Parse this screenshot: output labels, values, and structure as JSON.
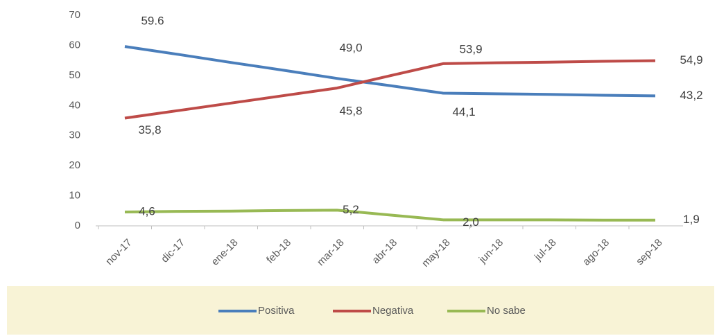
{
  "chart_data": {
    "type": "line",
    "categories": [
      "nov-17",
      "dic-17",
      "ene-18",
      "feb-18",
      "mar-18",
      "abr-18",
      "may-18",
      "jun-18",
      "jul-18",
      "ago-18",
      "sep-18"
    ],
    "series": [
      {
        "name": "Positiva",
        "color": "#4a7ebb",
        "values": [
          59.6,
          57.0,
          54.3,
          51.7,
          49.0,
          46.6,
          44.1,
          43.9,
          43.7,
          43.4,
          43.2
        ],
        "value_labels": [
          "59.6",
          null,
          null,
          null,
          "49,0",
          null,
          "44,1",
          null,
          null,
          null,
          "43,2"
        ]
      },
      {
        "name": "Negativa",
        "color": "#be4b48",
        "values": [
          35.8,
          38.3,
          40.8,
          43.3,
          45.8,
          49.9,
          53.9,
          54.2,
          54.4,
          54.7,
          54.9
        ],
        "value_labels": [
          "35,8",
          null,
          null,
          null,
          "45,8",
          null,
          "53,9",
          null,
          null,
          null,
          "54,9"
        ]
      },
      {
        "name": "No sabe",
        "color": "#98b954",
        "values": [
          4.6,
          4.8,
          4.9,
          5.1,
          5.2,
          3.6,
          2.0,
          2.0,
          2.0,
          1.9,
          1.9
        ],
        "value_labels": [
          "4,6",
          null,
          null,
          null,
          "5,2",
          null,
          "2,0",
          null,
          null,
          null,
          "1,9"
        ]
      }
    ],
    "ylim": [
      0,
      70
    ],
    "yticks": [
      0,
      10,
      20,
      30,
      40,
      50,
      60,
      70
    ],
    "legend": "bottom"
  }
}
